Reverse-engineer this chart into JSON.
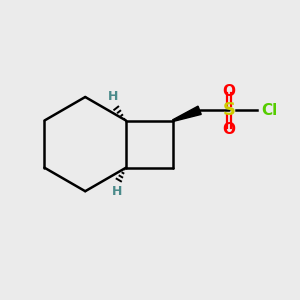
{
  "bg_color": "#ebebeb",
  "line_color": "#000000",
  "S_color": "#cccc00",
  "O_color": "#ff0000",
  "Cl_color": "#55cc00",
  "H_color": "#4a8a8a",
  "line_width": 1.8,
  "fig_size": [
    3.0,
    3.0
  ],
  "dpi": 100,
  "xlim": [
    0,
    10
  ],
  "ylim": [
    0,
    10
  ]
}
